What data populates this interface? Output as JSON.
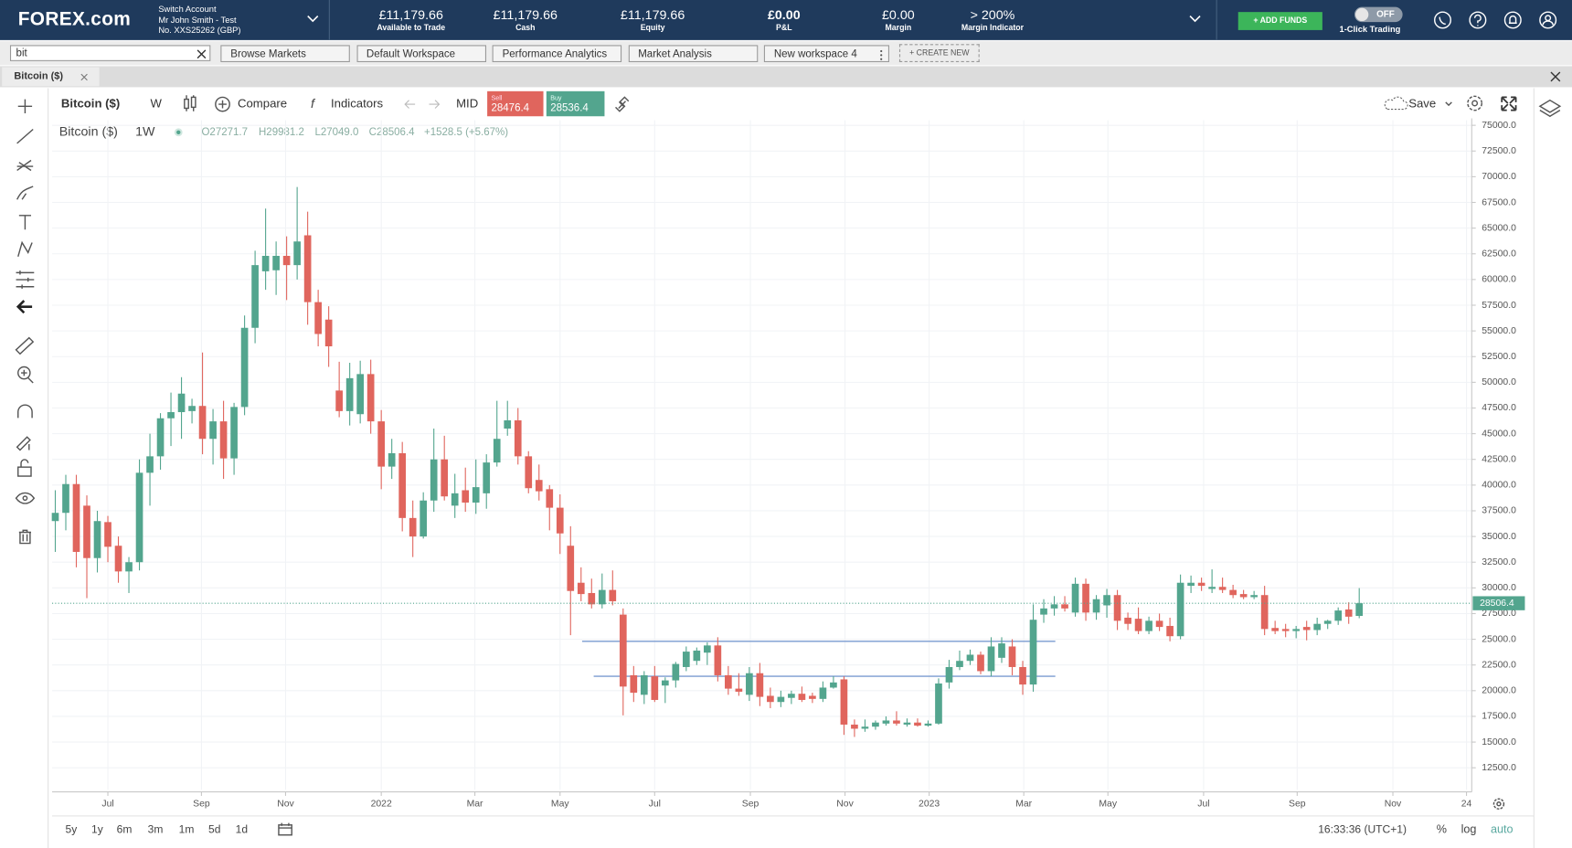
{
  "header": {
    "logo": "FOREX.com",
    "switch_account": "Switch Account",
    "account_name": "Mr John Smith - Test",
    "account_no": "No. XXS25262 (GBP)",
    "stats": [
      {
        "value": "£11,179.66",
        "label": "Available to Trade"
      },
      {
        "value": "£11,179.66",
        "label": "Cash"
      },
      {
        "value": "£11,179.66",
        "label": "Equity"
      },
      {
        "value": "£0.00",
        "label": "P&L"
      },
      {
        "value": "£0.00",
        "label": "Margin"
      },
      {
        "value": "> 200%",
        "label": "Margin Indicator"
      }
    ],
    "add_funds": "+ ADD FUNDS",
    "toggle": "OFF",
    "one_click": "1-Click Trading"
  },
  "search": "bit",
  "tabs": [
    "Browse Markets",
    "Default Workspace",
    "Performance Analytics",
    "Market Analysis",
    "New workspace 4"
  ],
  "create_new": "+ CREATE NEW",
  "instrument_tab": "Bitcoin ($)",
  "toolbar": {
    "instrument": "Bitcoin ($)",
    "interval": "W",
    "compare": "Compare",
    "indicators": "Indicators",
    "price_type": "MID",
    "sell_label": "Sell",
    "sell": "28476.4",
    "buy_label": "Buy",
    "buy": "28536.4",
    "save": "Save"
  },
  "legend": {
    "instrument": "Bitcoin ($)",
    "interval": "1W",
    "open": "O27271.7",
    "high": "H29981.2",
    "low": "L27049.0",
    "close": "C28506.4",
    "change": "+1528.5 (+5.67%)"
  },
  "chart_data": {
    "type": "candlestick",
    "up_color": "#53a58e",
    "down_color": "#e0655d",
    "line_color": "#7a9bd0",
    "grid": true,
    "candles": [
      [
        36500,
        39500,
        33500,
        37300
      ],
      [
        37300,
        41000,
        35600,
        40100
      ],
      [
        40100,
        41000,
        32000,
        33500
      ],
      [
        38000,
        39000,
        29000,
        32900
      ],
      [
        32900,
        37500,
        31500,
        36500
      ],
      [
        36400,
        37000,
        32500,
        34000
      ],
      [
        34100,
        35000,
        30500,
        31600
      ],
      [
        31600,
        33000,
        29500,
        32500
      ],
      [
        32500,
        42500,
        31700,
        41200
      ],
      [
        41200,
        45000,
        38000,
        42800
      ],
      [
        42800,
        47000,
        41500,
        46500
      ],
      [
        46500,
        49000,
        43800,
        47100
      ],
      [
        47100,
        50500,
        44500,
        48900
      ],
      [
        47200,
        48400,
        46000,
        47700
      ],
      [
        47700,
        52900,
        43000,
        44500
      ],
      [
        44500,
        47400,
        42000,
        46200
      ],
      [
        46200,
        48200,
        40600,
        42600
      ],
      [
        42600,
        48000,
        41000,
        47600
      ],
      [
        47600,
        56500,
        46800,
        55300
      ],
      [
        55300,
        62800,
        53800,
        61400
      ],
      [
        60800,
        66900,
        59000,
        62300
      ],
      [
        60900,
        63700,
        58500,
        62300
      ],
      [
        62300,
        64200,
        58000,
        61400
      ],
      [
        61400,
        69000,
        60000,
        63700
      ],
      [
        64300,
        66600,
        55600,
        57800
      ],
      [
        57800,
        59000,
        53500,
        54700
      ],
      [
        56100,
        57400,
        51500,
        53500
      ],
      [
        49200,
        52000,
        46600,
        47200
      ],
      [
        47200,
        51900,
        45800,
        50400
      ],
      [
        46900,
        52100,
        46000,
        50800
      ],
      [
        50800,
        52200,
        45000,
        46200
      ],
      [
        46200,
        47300,
        39600,
        41800
      ],
      [
        41800,
        44500,
        40600,
        43100
      ],
      [
        43100,
        44200,
        35500,
        36800
      ],
      [
        36800,
        38500,
        33000,
        35000
      ],
      [
        35000,
        39300,
        34800,
        38500
      ],
      [
        38500,
        45500,
        37400,
        42500
      ],
      [
        42500,
        44800,
        38500,
        38900
      ],
      [
        38000,
        41100,
        36800,
        39200
      ],
      [
        39500,
        41700,
        37400,
        38300
      ],
      [
        38300,
        42500,
        37200,
        39800
      ],
      [
        39200,
        43000,
        37700,
        42200
      ],
      [
        42200,
        48200,
        41800,
        44500
      ],
      [
        45500,
        48200,
        44800,
        46300
      ],
      [
        46300,
        47500,
        42000,
        42800
      ],
      [
        42800,
        43300,
        39200,
        39700
      ],
      [
        40500,
        42000,
        38500,
        39400
      ],
      [
        39600,
        40000,
        35600,
        37800
      ],
      [
        37800,
        39100,
        33300,
        35300
      ],
      [
        34100,
        36000,
        25400,
        29700
      ],
      [
        30500,
        32000,
        28700,
        29400
      ],
      [
        29500,
        30900,
        28000,
        28400
      ],
      [
        28400,
        31400,
        28000,
        29800
      ],
      [
        29800,
        31700,
        28300,
        28700
      ],
      [
        27400,
        28000,
        17600,
        20400
      ],
      [
        21500,
        22400,
        18900,
        19800
      ],
      [
        19600,
        21900,
        18700,
        21500
      ],
      [
        21400,
        22400,
        18900,
        19100
      ],
      [
        20500,
        21300,
        18800,
        21000
      ],
      [
        21000,
        22800,
        20300,
        22600
      ],
      [
        22300,
        24300,
        21900,
        23800
      ],
      [
        22900,
        24200,
        22500,
        23900
      ],
      [
        23700,
        24700,
        22500,
        24400
      ],
      [
        24400,
        25200,
        20900,
        21500
      ],
      [
        21500,
        22400,
        19600,
        20200
      ],
      [
        20200,
        21700,
        19500,
        19900
      ],
      [
        19600,
        22300,
        19000,
        21700
      ],
      [
        21700,
        22700,
        18500,
        19400
      ],
      [
        19500,
        20300,
        18300,
        18900
      ],
      [
        18900,
        20000,
        18400,
        19400
      ],
      [
        19300,
        20000,
        18700,
        19700
      ],
      [
        19700,
        20400,
        18900,
        19100
      ],
      [
        19500,
        19800,
        18800,
        19200
      ],
      [
        19200,
        20900,
        18900,
        20300
      ],
      [
        20300,
        21400,
        20200,
        20800
      ],
      [
        21100,
        21400,
        15700,
        16700
      ],
      [
        16700,
        17200,
        15500,
        16300
      ],
      [
        16300,
        17200,
        16000,
        16500
      ],
      [
        16500,
        17100,
        16200,
        16900
      ],
      [
        16800,
        17500,
        16600,
        17100
      ],
      [
        17100,
        18000,
        16600,
        16800
      ],
      [
        16700,
        17300,
        16500,
        16900
      ],
      [
        16900,
        17300,
        16500,
        16600
      ],
      [
        16600,
        17100,
        16500,
        16800
      ],
      [
        16800,
        21200,
        16700,
        20700
      ],
      [
        20800,
        23000,
        20200,
        22300
      ],
      [
        22300,
        23900,
        22000,
        22900
      ],
      [
        22900,
        24000,
        22500,
        23500
      ],
      [
        23500,
        23800,
        21600,
        21900
      ],
      [
        21900,
        25200,
        21400,
        24300
      ],
      [
        23200,
        25200,
        22700,
        24600
      ],
      [
        24300,
        25000,
        21500,
        22300
      ],
      [
        22300,
        22900,
        19600,
        20600
      ],
      [
        20600,
        28400,
        19900,
        26900
      ],
      [
        27400,
        28900,
        26600,
        28000
      ],
      [
        28000,
        29200,
        27300,
        28400
      ],
      [
        28400,
        29200,
        27700,
        28000
      ],
      [
        27600,
        31000,
        27200,
        30400
      ],
      [
        30400,
        30900,
        26800,
        27600
      ],
      [
        27600,
        29300,
        26900,
        28900
      ],
      [
        28300,
        29900,
        27100,
        29300
      ],
      [
        29300,
        29800,
        25900,
        26800
      ],
      [
        27100,
        27600,
        25900,
        26500
      ],
      [
        27000,
        28100,
        25500,
        25800
      ],
      [
        25800,
        27200,
        25500,
        26800
      ],
      [
        26800,
        27500,
        25800,
        26200
      ],
      [
        26300,
        27100,
        24800,
        25300
      ],
      [
        25300,
        31300,
        25000,
        30500
      ],
      [
        30200,
        31200,
        29500,
        30500
      ],
      [
        30500,
        31000,
        29700,
        30200
      ],
      [
        29900,
        31800,
        29500,
        30100
      ],
      [
        30100,
        31000,
        29500,
        29800
      ],
      [
        29800,
        30300,
        29000,
        29300
      ],
      [
        29400,
        29800,
        28900,
        29100
      ],
      [
        29100,
        29700,
        28900,
        29300
      ],
      [
        29300,
        30200,
        25400,
        26000
      ],
      [
        26100,
        26800,
        25500,
        25800
      ],
      [
        26000,
        26500,
        25200,
        25800
      ],
      [
        25800,
        26300,
        25100,
        26000
      ],
      [
        26200,
        26800,
        24900,
        25900
      ],
      [
        25900,
        27100,
        25400,
        26500
      ],
      [
        26500,
        26900,
        26000,
        26800
      ],
      [
        26800,
        28100,
        26400,
        27800
      ],
      [
        27900,
        28600,
        26500,
        27200
      ],
      [
        27271.7,
        29981.2,
        27049.0,
        28506.4
      ]
    ],
    "lines": [
      {
        "value": 24800,
        "x": [
          50.1,
          95.1
        ]
      },
      {
        "value": 21400,
        "x": [
          51.2,
          95.1
        ]
      }
    ],
    "ylim": [
      10350,
      75490
    ],
    "yticks": [
      {
        "value": 12500,
        "label": "12500.0"
      },
      {
        "value": 15000,
        "label": "15000.0"
      },
      {
        "value": 17500,
        "label": "17500.0"
      },
      {
        "value": 20000,
        "label": "20000.0"
      },
      {
        "value": 22500,
        "label": "22500.0"
      },
      {
        "value": 25000,
        "label": "25000.0"
      },
      {
        "value": 27500,
        "label": "27500.0"
      },
      {
        "value": 30000,
        "label": "30000.0"
      },
      {
        "value": 32500,
        "label": "32500.0"
      },
      {
        "value": 35000,
        "label": "35000.0"
      },
      {
        "value": 37500,
        "label": "37500.0"
      },
      {
        "value": 40000,
        "label": "40000.0"
      },
      {
        "value": 42500,
        "label": "42500.0"
      },
      {
        "value": 45000,
        "label": "45000.0"
      },
      {
        "value": 47500,
        "label": "47500.0"
      },
      {
        "value": 50000,
        "label": "50000.0"
      },
      {
        "value": 52500,
        "label": "52500.0"
      },
      {
        "value": 55000,
        "label": "55000.0"
      },
      {
        "value": 57500,
        "label": "57500.0"
      },
      {
        "value": 60000,
        "label": "60000.0"
      },
      {
        "value": 62500,
        "label": "62500.0"
      },
      {
        "value": 65000,
        "label": "65000.0"
      },
      {
        "value": 67500,
        "label": "67500.0"
      },
      {
        "value": 70000,
        "label": "70000.0"
      },
      {
        "value": 72500,
        "label": "72500.0"
      },
      {
        "value": 75000,
        "label": "75000.0"
      }
    ],
    "xlim": [
      -0.3,
      134.7
    ],
    "xticks": [
      {
        "value": 5.0,
        "label": "Jul"
      },
      {
        "value": 13.9,
        "label": "Sep"
      },
      {
        "value": 21.9,
        "label": "Nov"
      },
      {
        "value": 31.0,
        "label": "2022"
      },
      {
        "value": 39.9,
        "label": "Mar"
      },
      {
        "value": 48.0,
        "label": "May"
      },
      {
        "value": 57.0,
        "label": "Jul"
      },
      {
        "value": 66.1,
        "label": "Sep"
      },
      {
        "value": 75.1,
        "label": "Nov"
      },
      {
        "value": 83.1,
        "label": "2023"
      },
      {
        "value": 92.1,
        "label": "Mar"
      },
      {
        "value": 100.1,
        "label": "May"
      },
      {
        "value": 109.2,
        "label": "Jul"
      },
      {
        "value": 118.1,
        "label": "Sep"
      },
      {
        "value": 127.2,
        "label": "Nov"
      },
      {
        "value": 134.2,
        "label": "24"
      }
    ]
  },
  "range_buttons": [
    "5y",
    "1y",
    "6m",
    "3m",
    "1m",
    "5d",
    "1d"
  ],
  "clock": "16:33:36 (UTC+1)",
  "axis_options": [
    "%",
    "log",
    "auto"
  ]
}
